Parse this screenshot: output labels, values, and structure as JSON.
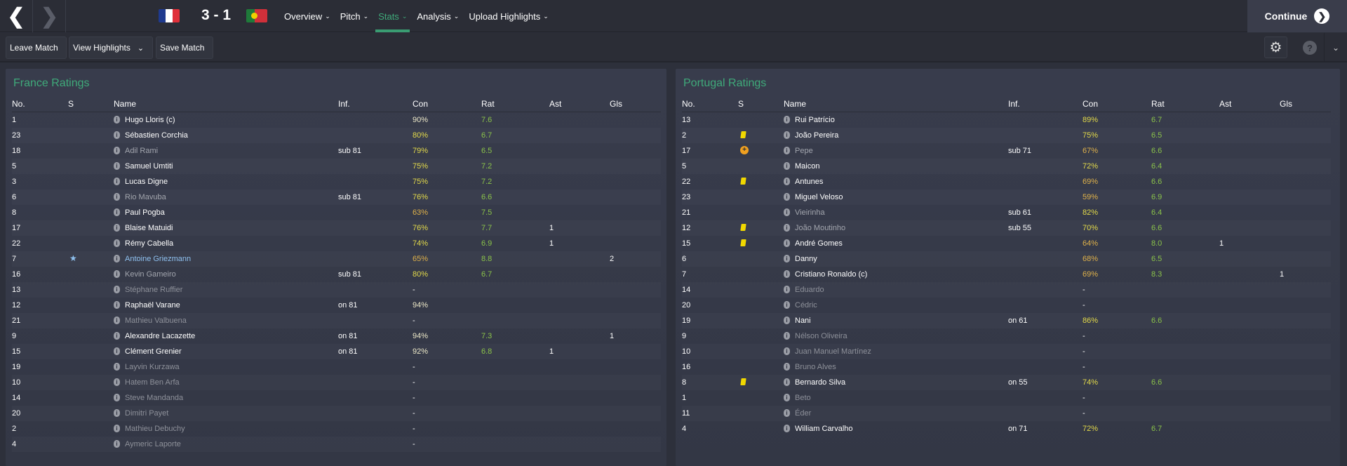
{
  "topbar": {
    "score": "3 - 1",
    "home_flag": "france",
    "away_flag": "portugal",
    "menu": [
      {
        "label": "Overview",
        "active": false
      },
      {
        "label": "Pitch",
        "active": false
      },
      {
        "label": "Stats",
        "active": true
      },
      {
        "label": "Analysis",
        "active": false
      },
      {
        "label": "Upload Highlights",
        "active": false
      }
    ],
    "continue_label": "Continue"
  },
  "toolbar": {
    "leave": "Leave Match",
    "highlights": "View Highlights",
    "save": "Save Match"
  },
  "colors": {
    "accent": "#3faa7a",
    "rating": "#8bc34a",
    "yellow_card": "#f1d800",
    "player_of_match": "#8fc1ef"
  },
  "columns": [
    "No.",
    "S",
    "Name",
    "Inf.",
    "Con",
    "Rat",
    "Ast",
    "Gls"
  ],
  "teams": [
    {
      "title": "France Ratings",
      "players": [
        {
          "no": "1",
          "s": "",
          "name": "Hugo Lloris (c)",
          "status": "played",
          "inf": "",
          "con": "90%",
          "rat": "7.6",
          "ast": "",
          "gls": ""
        },
        {
          "no": "23",
          "s": "",
          "name": "Sébastien Corchia",
          "status": "played",
          "inf": "",
          "con": "80%",
          "rat": "6.7",
          "ast": "",
          "gls": ""
        },
        {
          "no": "18",
          "s": "",
          "name": "Adil Rami",
          "status": "subbed",
          "inf": "sub 81",
          "con": "79%",
          "rat": "6.5",
          "ast": "",
          "gls": ""
        },
        {
          "no": "5",
          "s": "",
          "name": "Samuel Umtiti",
          "status": "played",
          "inf": "",
          "con": "75%",
          "rat": "7.2",
          "ast": "",
          "gls": ""
        },
        {
          "no": "3",
          "s": "",
          "name": "Lucas Digne",
          "status": "played",
          "inf": "",
          "con": "75%",
          "rat": "7.2",
          "ast": "",
          "gls": ""
        },
        {
          "no": "6",
          "s": "",
          "name": "Rio Mavuba",
          "status": "subbed",
          "inf": "sub 81",
          "con": "76%",
          "rat": "6.6",
          "ast": "",
          "gls": ""
        },
        {
          "no": "8",
          "s": "",
          "name": "Paul Pogba",
          "status": "played",
          "inf": "",
          "con": "63%",
          "rat": "7.5",
          "ast": "",
          "gls": ""
        },
        {
          "no": "17",
          "s": "",
          "name": "Blaise Matuidi",
          "status": "played",
          "inf": "",
          "con": "76%",
          "rat": "7.7",
          "ast": "1",
          "gls": ""
        },
        {
          "no": "22",
          "s": "",
          "name": "Rémy Cabella",
          "status": "played",
          "inf": "",
          "con": "74%",
          "rat": "6.9",
          "ast": "1",
          "gls": ""
        },
        {
          "no": "7",
          "s": "star",
          "name": "Antoine Griezmann",
          "status": "pom",
          "inf": "",
          "con": "65%",
          "rat": "8.8",
          "ast": "",
          "gls": "2"
        },
        {
          "no": "16",
          "s": "",
          "name": "Kevin Gameiro",
          "status": "subbed",
          "inf": "sub 81",
          "con": "80%",
          "rat": "6.7",
          "ast": "",
          "gls": ""
        },
        {
          "no": "13",
          "s": "",
          "name": "Stéphane Ruffier",
          "status": "unused",
          "inf": "",
          "con": "-",
          "rat": "",
          "ast": "",
          "gls": ""
        },
        {
          "no": "12",
          "s": "",
          "name": "Raphaël Varane",
          "status": "played",
          "inf": "on 81",
          "con": "94%",
          "rat": "",
          "ast": "",
          "gls": ""
        },
        {
          "no": "21",
          "s": "",
          "name": "Mathieu Valbuena",
          "status": "unused",
          "inf": "",
          "con": "-",
          "rat": "",
          "ast": "",
          "gls": ""
        },
        {
          "no": "9",
          "s": "",
          "name": "Alexandre Lacazette",
          "status": "played",
          "inf": "on 81",
          "con": "94%",
          "rat": "7.3",
          "ast": "",
          "gls": "1"
        },
        {
          "no": "15",
          "s": "",
          "name": "Clément Grenier",
          "status": "played",
          "inf": "on 81",
          "con": "92%",
          "rat": "6.8",
          "ast": "1",
          "gls": ""
        },
        {
          "no": "19",
          "s": "",
          "name": "Layvin Kurzawa",
          "status": "unused",
          "inf": "",
          "con": "-",
          "rat": "",
          "ast": "",
          "gls": ""
        },
        {
          "no": "10",
          "s": "",
          "name": "Hatem Ben Arfa",
          "status": "unused",
          "inf": "",
          "con": "-",
          "rat": "",
          "ast": "",
          "gls": ""
        },
        {
          "no": "14",
          "s": "",
          "name": "Steve Mandanda",
          "status": "unused",
          "inf": "",
          "con": "-",
          "rat": "",
          "ast": "",
          "gls": ""
        },
        {
          "no": "20",
          "s": "",
          "name": "Dimitri Payet",
          "status": "unused",
          "inf": "",
          "con": "-",
          "rat": "",
          "ast": "",
          "gls": ""
        },
        {
          "no": "2",
          "s": "",
          "name": "Mathieu Debuchy",
          "status": "unused",
          "inf": "",
          "con": "-",
          "rat": "",
          "ast": "",
          "gls": ""
        },
        {
          "no": "4",
          "s": "",
          "name": "Aymeric Laporte",
          "status": "unused",
          "inf": "",
          "con": "-",
          "rat": "",
          "ast": "",
          "gls": ""
        }
      ]
    },
    {
      "title": "Portugal Ratings",
      "players": [
        {
          "no": "13",
          "s": "",
          "name": "Rui Patrício",
          "status": "played",
          "inf": "",
          "con": "89%",
          "rat": "6.7",
          "ast": "",
          "gls": ""
        },
        {
          "no": "2",
          "s": "yellow",
          "name": "João Pereira",
          "status": "played",
          "inf": "",
          "con": "75%",
          "rat": "6.5",
          "ast": "",
          "gls": ""
        },
        {
          "no": "17",
          "s": "injury",
          "name": "Pepe",
          "status": "subbed",
          "inf": "sub 71",
          "con": "67%",
          "rat": "6.6",
          "ast": "",
          "gls": ""
        },
        {
          "no": "5",
          "s": "",
          "name": "Maicon",
          "status": "played",
          "inf": "",
          "con": "72%",
          "rat": "6.4",
          "ast": "",
          "gls": ""
        },
        {
          "no": "22",
          "s": "yellow",
          "name": "Antunes",
          "status": "played",
          "inf": "",
          "con": "69%",
          "rat": "6.6",
          "ast": "",
          "gls": ""
        },
        {
          "no": "23",
          "s": "",
          "name": "Miguel Veloso",
          "status": "played",
          "inf": "",
          "con": "59%",
          "rat": "6.9",
          "ast": "",
          "gls": ""
        },
        {
          "no": "21",
          "s": "",
          "name": "Vieirinha",
          "status": "subbed",
          "inf": "sub 61",
          "con": "82%",
          "rat": "6.4",
          "ast": "",
          "gls": ""
        },
        {
          "no": "12",
          "s": "yellow",
          "name": "João Moutinho",
          "status": "subbed",
          "inf": "sub 55",
          "con": "70%",
          "rat": "6.6",
          "ast": "",
          "gls": ""
        },
        {
          "no": "15",
          "s": "yellow",
          "name": "André Gomes",
          "status": "played",
          "inf": "",
          "con": "64%",
          "rat": "8.0",
          "ast": "1",
          "gls": ""
        },
        {
          "no": "6",
          "s": "",
          "name": "Danny",
          "status": "played",
          "inf": "",
          "con": "68%",
          "rat": "6.5",
          "ast": "",
          "gls": ""
        },
        {
          "no": "7",
          "s": "",
          "name": "Cristiano Ronaldo (c)",
          "status": "played",
          "inf": "",
          "con": "69%",
          "rat": "8.3",
          "ast": "",
          "gls": "1"
        },
        {
          "no": "14",
          "s": "",
          "name": "Eduardo",
          "status": "unused",
          "inf": "",
          "con": "-",
          "rat": "",
          "ast": "",
          "gls": ""
        },
        {
          "no": "20",
          "s": "",
          "name": "Cédric",
          "status": "unused",
          "inf": "",
          "con": "-",
          "rat": "",
          "ast": "",
          "gls": ""
        },
        {
          "no": "19",
          "s": "",
          "name": "Nani",
          "status": "played",
          "inf": "on 61",
          "con": "86%",
          "rat": "6.6",
          "ast": "",
          "gls": ""
        },
        {
          "no": "9",
          "s": "",
          "name": "Nélson Oliveira",
          "status": "unused",
          "inf": "",
          "con": "-",
          "rat": "",
          "ast": "",
          "gls": ""
        },
        {
          "no": "10",
          "s": "",
          "name": "Juan Manuel Martínez",
          "status": "unused",
          "inf": "",
          "con": "-",
          "rat": "",
          "ast": "",
          "gls": ""
        },
        {
          "no": "16",
          "s": "",
          "name": "Bruno Alves",
          "status": "unused",
          "inf": "",
          "con": "-",
          "rat": "",
          "ast": "",
          "gls": ""
        },
        {
          "no": "8",
          "s": "yellow",
          "name": "Bernardo Silva",
          "status": "played",
          "inf": "on 55",
          "con": "74%",
          "rat": "6.6",
          "ast": "",
          "gls": ""
        },
        {
          "no": "1",
          "s": "",
          "name": "Beto",
          "status": "unused",
          "inf": "",
          "con": "-",
          "rat": "",
          "ast": "",
          "gls": ""
        },
        {
          "no": "11",
          "s": "",
          "name": "Éder",
          "status": "unused",
          "inf": "",
          "con": "-",
          "rat": "",
          "ast": "",
          "gls": ""
        },
        {
          "no": "4",
          "s": "",
          "name": "William Carvalho",
          "status": "played",
          "inf": "on 71",
          "con": "72%",
          "rat": "6.7",
          "ast": "",
          "gls": ""
        }
      ]
    }
  ]
}
